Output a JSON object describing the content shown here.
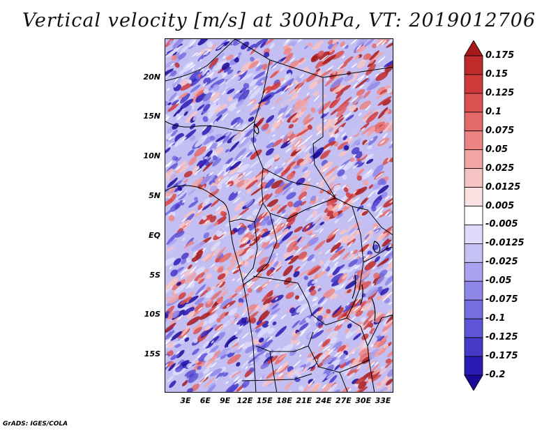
{
  "title": "Vertical velocity [m/s] at 300hPa, VT: 2019012706",
  "y_axis_labels": [
    "20N",
    "15N",
    "10N",
    "5N",
    "EQ",
    "5S",
    "10S",
    "15S"
  ],
  "x_axis_labels": [
    "3E",
    "6E",
    "9E",
    "12E",
    "15E",
    "18E",
    "21E",
    "24E",
    "27E",
    "30E",
    "33E"
  ],
  "colorbar": {
    "labels": [
      "0.175",
      "0.15",
      "0.125",
      "0.1",
      "0.075",
      "0.05",
      "0.025",
      "0.0125",
      "0.005",
      "-0.005",
      "-0.0125",
      "-0.025",
      "-0.05",
      "-0.075",
      "-0.1",
      "-0.125",
      "-0.175",
      "-0.2"
    ],
    "colors": [
      "#a81a1a",
      "#bf2a2a",
      "#cf3b3b",
      "#db5050",
      "#e46a6a",
      "#ec8484",
      "#f2a3a3",
      "#f7c4c4",
      "#fbe2e2",
      "#ffffff",
      "#dedcfa",
      "#c5c1f5",
      "#a9a3ef",
      "#8f87e8",
      "#766ee0",
      "#5e55d6",
      "#4539c8",
      "#2b1ab3",
      "#1a0a9a"
    ]
  },
  "footer": "GrADS: IGES/COLA"
}
